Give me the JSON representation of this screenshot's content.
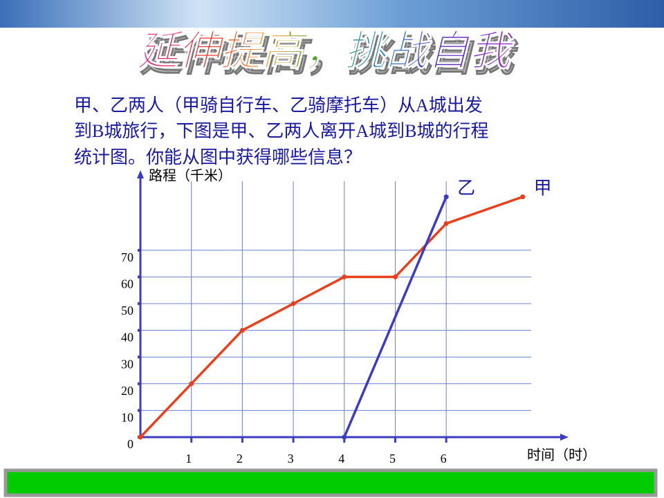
{
  "header": {
    "title": "延伸提高，挑战自我"
  },
  "text": {
    "lines": [
      "甲、乙两人（甲骑自行车、乙骑摩托车）从A城出发",
      "到B城旅行，下图是甲、乙两人离开A城到B城的行程",
      "统计图。你能从图中获得哪些信息？"
    ]
  },
  "chart_data": {
    "type": "line",
    "y_label": "路程（千米）",
    "x_label": "时间（时）",
    "xlim": [
      0,
      8.4
    ],
    "ylim": [
      0,
      100
    ],
    "xticks": [
      1,
      2,
      3,
      4,
      5,
      6
    ],
    "yticks": [
      0,
      10,
      20,
      30,
      40,
      50,
      60,
      70
    ],
    "grid": true,
    "series": [
      {
        "name": "甲",
        "color": "#e8401c",
        "x": [
          0,
          1,
          2,
          3,
          4,
          5,
          6,
          7.5
        ],
        "values": [
          0,
          20,
          40,
          50,
          60,
          60,
          80,
          90
        ]
      },
      {
        "name": "乙",
        "color": "#3c3cc0",
        "x": [
          4,
          6
        ],
        "values": [
          0,
          90
        ]
      }
    ]
  }
}
